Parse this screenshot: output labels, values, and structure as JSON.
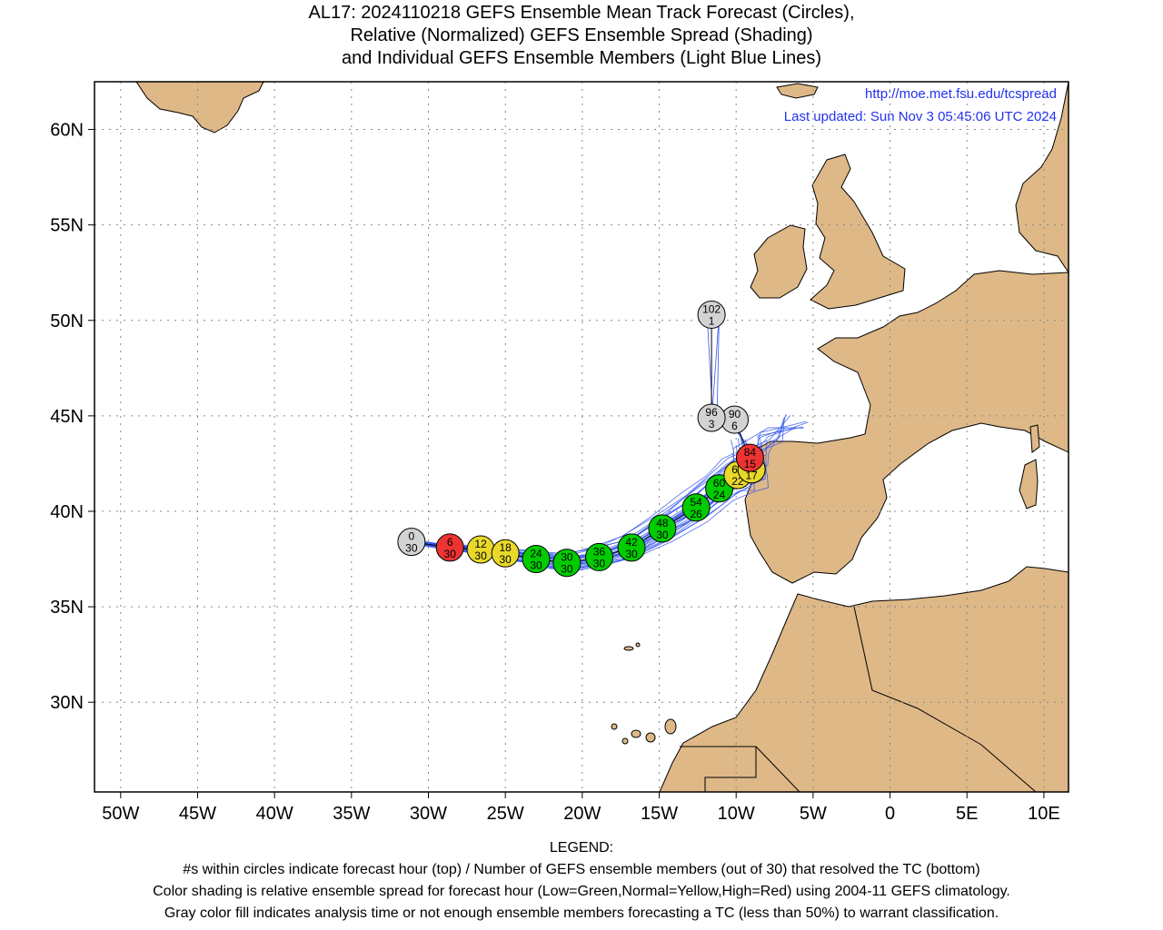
{
  "title": {
    "line1": "AL17: 2024110218 GEFS Ensemble Mean Track Forecast (Circles),",
    "line2": "Relative (Normalized) GEFS Ensemble Spread (Shading)",
    "line3": "and Individual GEFS Ensemble Members (Light Blue Lines)"
  },
  "credits": {
    "url": "http://moe.met.fsu.edu/tcspread",
    "updated": "Last updated: Sun Nov 3 05:45:06 UTC 2024"
  },
  "axes": {
    "lon_ticks": [
      {
        "lon": -50,
        "label": "50W"
      },
      {
        "lon": -45,
        "label": "45W"
      },
      {
        "lon": -40,
        "label": "40W"
      },
      {
        "lon": -35,
        "label": "35W"
      },
      {
        "lon": -30,
        "label": "30W"
      },
      {
        "lon": -25,
        "label": "25W"
      },
      {
        "lon": -20,
        "label": "20W"
      },
      {
        "lon": -15,
        "label": "15W"
      },
      {
        "lon": -10,
        "label": "10W"
      },
      {
        "lon": -5,
        "label": "5W"
      },
      {
        "lon": 0,
        "label": "0"
      },
      {
        "lon": 5,
        "label": "5E"
      },
      {
        "lon": 10,
        "label": "10E"
      }
    ],
    "lat_ticks": [
      {
        "lat": 60,
        "label": "60N"
      },
      {
        "lat": 55,
        "label": "55N"
      },
      {
        "lat": 50,
        "label": "50N"
      },
      {
        "lat": 45,
        "label": "45N"
      },
      {
        "lat": 40,
        "label": "40N"
      },
      {
        "lat": 35,
        "label": "35N"
      },
      {
        "lat": 30,
        "label": "30N"
      }
    ],
    "lon_range": [
      -51.7,
      11.6
    ],
    "lat_range": [
      25.3,
      62.5
    ],
    "grid": "dotted"
  },
  "colors": {
    "land": "#deb887",
    "ocean": "#ffffff",
    "member_tracks": "#3355ee",
    "credits_text": "#2233ee",
    "spread_low": "#00cc00",
    "spread_normal": "#e8d82a",
    "spread_high": "#ee3333",
    "not_classified": "#d3d3d3"
  },
  "track": [
    {
      "hour": "0",
      "members": "30",
      "lon": -31.1,
      "lat": 38.4,
      "spread": "gray"
    },
    {
      "hour": "6",
      "members": "30",
      "lon": -28.6,
      "lat": 38.1,
      "spread": "high"
    },
    {
      "hour": "12",
      "members": "30",
      "lon": -26.6,
      "lat": 38.0,
      "spread": "normal"
    },
    {
      "hour": "18",
      "members": "30",
      "lon": -25.0,
      "lat": 37.8,
      "spread": "normal"
    },
    {
      "hour": "24",
      "members": "30",
      "lon": -23.0,
      "lat": 37.5,
      "spread": "low"
    },
    {
      "hour": "30",
      "members": "30",
      "lon": -21.0,
      "lat": 37.3,
      "spread": "low"
    },
    {
      "hour": "36",
      "members": "30",
      "lon": -18.9,
      "lat": 37.6,
      "spread": "low"
    },
    {
      "hour": "42",
      "members": "30",
      "lon": -16.8,
      "lat": 38.1,
      "spread": "low"
    },
    {
      "hour": "48",
      "members": "30",
      "lon": -14.8,
      "lat": 39.1,
      "spread": "low"
    },
    {
      "hour": "54",
      "members": "26",
      "lon": -12.6,
      "lat": 40.2,
      "spread": "low"
    },
    {
      "hour": "60",
      "members": "24",
      "lon": -11.1,
      "lat": 41.2,
      "spread": "low"
    },
    {
      "hour": "66",
      "members": "22",
      "lon": -9.9,
      "lat": 41.9,
      "spread": "normal"
    },
    {
      "hour": "72",
      "members": "17",
      "lon": -9.0,
      "lat": 42.2,
      "spread": "normal"
    },
    {
      "hour": "84",
      "members": "15",
      "lon": -9.1,
      "lat": 42.8,
      "spread": "high"
    },
    {
      "hour": "90",
      "members": "6",
      "lon": -10.1,
      "lat": 44.8,
      "spread": "gray"
    },
    {
      "hour": "96",
      "members": "3",
      "lon": -11.6,
      "lat": 44.9,
      "spread": "gray"
    },
    {
      "hour": "102",
      "members": "1",
      "lon": -11.6,
      "lat": 50.3,
      "spread": "gray"
    }
  ],
  "legend": {
    "heading": "LEGEND:",
    "line1": "#s within circles indicate forecast hour (top) / Number of GEFS ensemble members (out of 30) that resolved the TC (bottom)",
    "line2": "Color shading is relative ensemble spread for forecast hour (Low=Green,Normal=Yellow,High=Red) using 2004-11 GEFS climatology.",
    "line3": "Gray color fill indicates analysis time or not enough ensemble members forecasting a TC (less than 50%) to warrant classification."
  }
}
